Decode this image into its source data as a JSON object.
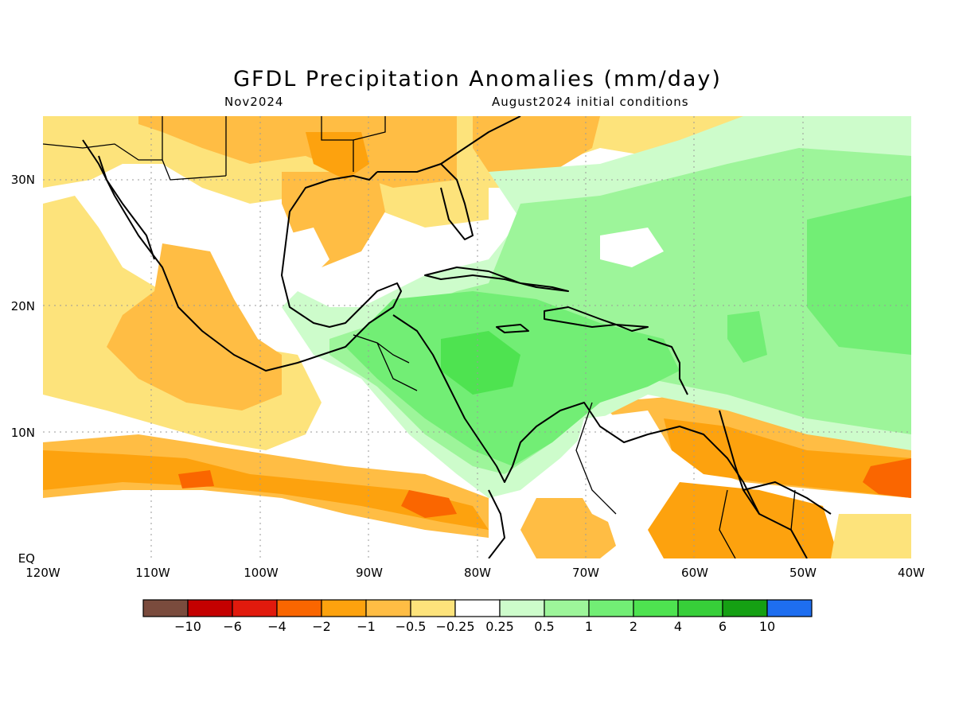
{
  "title": "GFDL Precipitation Anomalies (mm/day)",
  "subtitle_left": "Nov2024",
  "subtitle_right": "August2024 initial conditions",
  "map": {
    "region": "Caribbean / Central America",
    "latitude_labels": [
      "30N",
      "20N",
      "10N",
      "EQ"
    ],
    "longitude_labels": [
      "120W",
      "110W",
      "100W",
      "90W",
      "80W",
      "70W",
      "60W",
      "50W",
      "40W"
    ],
    "grid": true
  },
  "colorbar": {
    "colors": [
      "#7a4b3d",
      "#c40000",
      "#e11a0d",
      "#fa6600",
      "#fda20e",
      "#ffbd44",
      "#fde37b",
      "#ffffff",
      "#cdfccb",
      "#9df59a",
      "#72ee75",
      "#4ee350",
      "#37cf39",
      "#15a013",
      "#1e6ef0"
    ],
    "labels": [
      "−10",
      "−6",
      "−4",
      "−2",
      "−1",
      "−0.5",
      "−0.25",
      "0.25",
      "0.5",
      "1",
      "2",
      "4",
      "6",
      "10"
    ]
  }
}
